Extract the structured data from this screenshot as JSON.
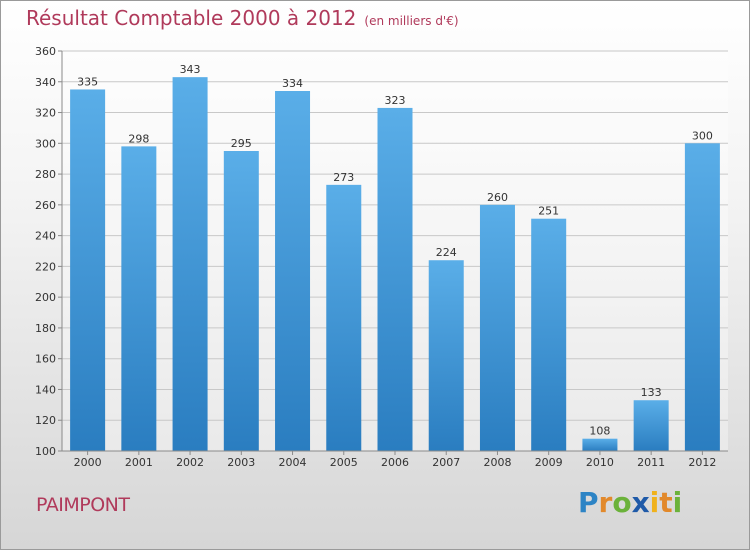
{
  "header": {
    "title": "Résultat Comptable 2000 à 2012",
    "unit": "(en milliers d'€)"
  },
  "footer": {
    "city": "PAIMPONT",
    "brand": "Proxiti"
  },
  "colors": {
    "accent": "#b03a5b",
    "bar_top": "#5aaee8",
    "bar_bottom": "#2a7dc0"
  },
  "chart_data": {
    "type": "bar",
    "title": "Résultat Comptable 2000 à 2012",
    "ylabel": "en milliers d'€",
    "xlabel": "",
    "categories": [
      "2000",
      "2001",
      "2002",
      "2003",
      "2004",
      "2005",
      "2006",
      "2007",
      "2008",
      "2009",
      "2010",
      "2011",
      "2012"
    ],
    "values": [
      335,
      298,
      343,
      295,
      334,
      273,
      323,
      224,
      260,
      251,
      108,
      133,
      300
    ],
    "ylim": [
      100,
      360
    ],
    "yticks": [
      100,
      120,
      140,
      160,
      180,
      200,
      220,
      240,
      260,
      280,
      300,
      320,
      340,
      360
    ],
    "grid": true
  }
}
